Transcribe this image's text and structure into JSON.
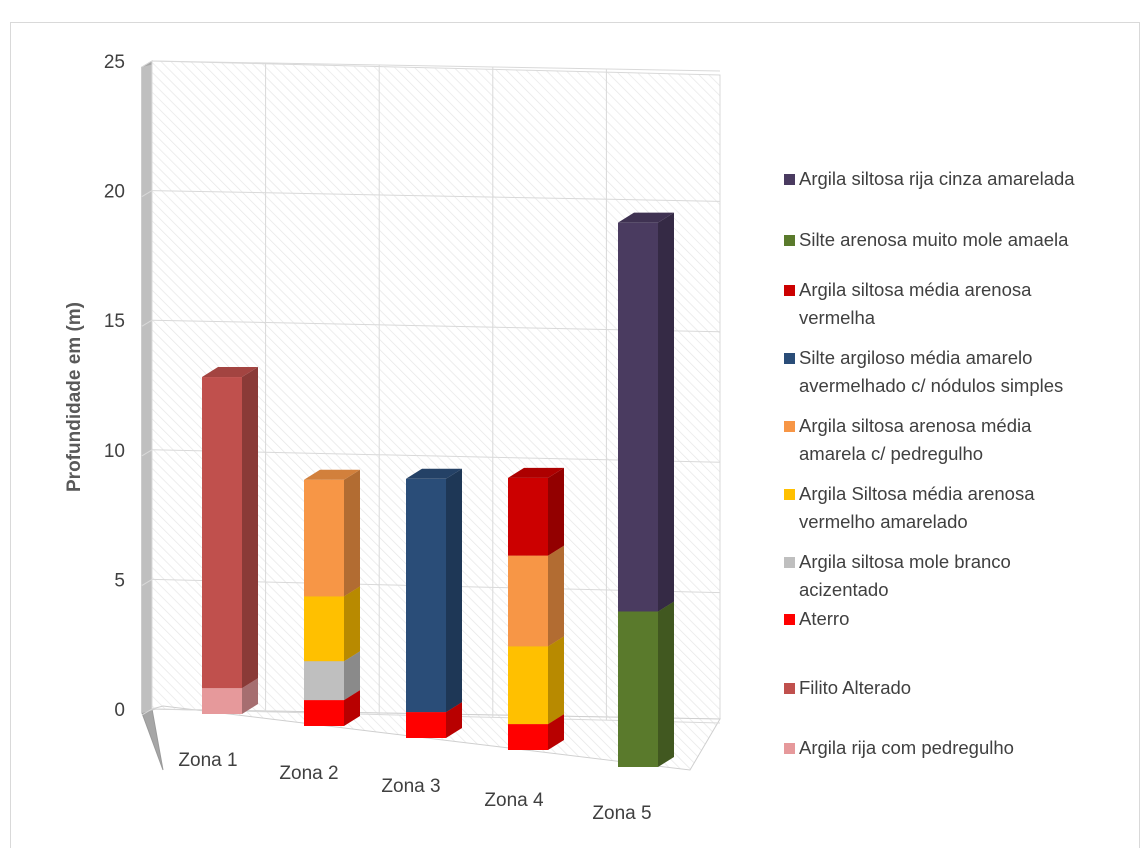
{
  "chart_data": {
    "type": "bar",
    "stacked": true,
    "three_d": true,
    "title": "",
    "xlabel": "",
    "ylabel": "Profundidade  em (m)",
    "ylim": [
      0,
      25
    ],
    "yticks": [
      0,
      5,
      10,
      15,
      20,
      25
    ],
    "grid": true,
    "legend_position": "right",
    "categories": [
      "Zona 1",
      "Zona 2",
      "Zona 3",
      "Zona 4",
      "Zona 5"
    ],
    "series": [
      {
        "name": "Argila rija com pedregulho",
        "color": "#e6999b",
        "values": [
          1,
          0,
          0,
          0,
          0
        ]
      },
      {
        "name": "Filito Alterado",
        "color": "#c0504d",
        "values": [
          12,
          0,
          0,
          0,
          0
        ]
      },
      {
        "name": "Aterro",
        "color": "#ff0000",
        "values": [
          0,
          1,
          1,
          1,
          0
        ]
      },
      {
        "name": "Argila siltosa mole branco acizentado",
        "color": "#bfbfbf",
        "values": [
          0,
          1.5,
          0,
          0,
          0
        ]
      },
      {
        "name": "Argila Siltosa média arenosa vermelho amarelado",
        "color": "#ffc000",
        "values": [
          0,
          2.5,
          0,
          3,
          0
        ]
      },
      {
        "name": "Argila siltosa arenosa média amarela c/ pedregulho",
        "color": "#f79646",
        "values": [
          0,
          4.5,
          0,
          3.5,
          0
        ]
      },
      {
        "name": "Silte argiloso média amarelo avermelhado c/ nódulos simples",
        "color": "#2a4d78",
        "values": [
          0,
          0,
          9,
          0,
          0
        ]
      },
      {
        "name": "Argila siltosa média arenosa vermelha",
        "color": "#cc0000",
        "values": [
          0,
          0,
          0,
          3,
          0
        ]
      },
      {
        "name": "Silte arenosa muito mole amaela",
        "color": "#5a7a2c",
        "values": [
          0,
          0,
          0,
          0,
          6
        ]
      },
      {
        "name": "Argila siltosa rija cinza amarelada",
        "color": "#4a3b60",
        "values": [
          0,
          0,
          0,
          0,
          15
        ]
      }
    ],
    "legend": [
      {
        "lines": [
          "Argila siltosa rija cinza amarelada"
        ],
        "color": "#4a3b60"
      },
      {
        "lines": [
          "Silte arenosa muito mole amaela"
        ],
        "color": "#5a7a2c"
      },
      {
        "lines": [
          "Argila siltosa média arenosa",
          "vermelha"
        ],
        "color": "#cc0000"
      },
      {
        "lines": [
          "Silte argiloso média amarelo",
          "avermelhado c/ nódulos simples"
        ],
        "color": "#2a4d78"
      },
      {
        "lines": [
          "Argila siltosa arenosa média",
          "amarela c/ pedregulho"
        ],
        "color": "#f79646"
      },
      {
        "lines": [
          "Argila Siltosa média arenosa",
          "vermelho amarelado"
        ],
        "color": "#ffc000"
      },
      {
        "lines": [
          "Argila siltosa mole branco",
          "acizentado"
        ],
        "color": "#bfbfbf"
      },
      {
        "lines": [
          "Aterro"
        ],
        "color": "#ff0000"
      },
      {
        "lines": [
          "Filito Alterado"
        ],
        "color": "#c0504d"
      },
      {
        "lines": [
          "Argila rija com pedregulho"
        ],
        "color": "#e6999b"
      }
    ]
  }
}
